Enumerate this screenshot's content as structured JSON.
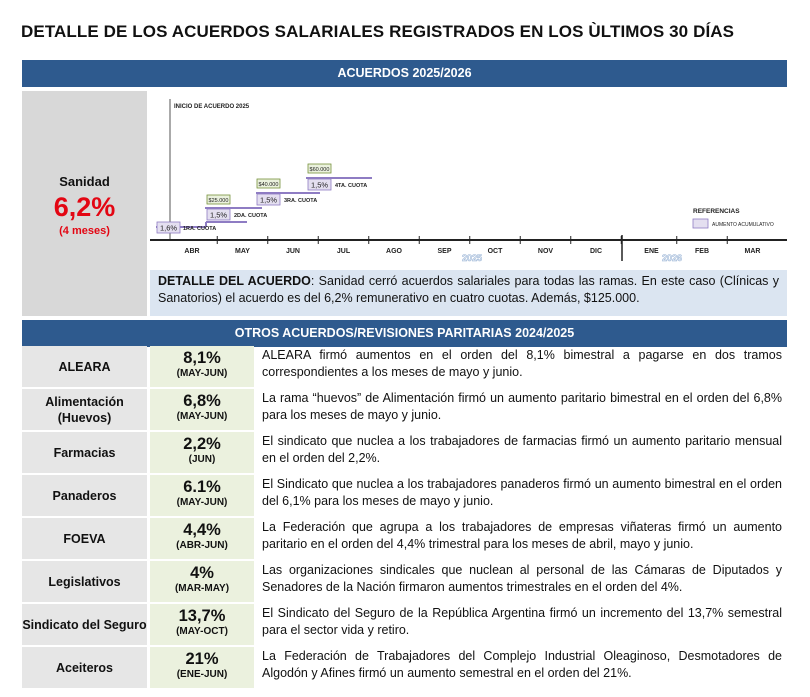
{
  "title": "DETALLE DE LOS ACUERDOS SALARIALES REGISTRADOS EN LOS ÙLTIMOS 30 DÍAS",
  "section1": {
    "header": "ACUERDOS 2025/2026"
  },
  "sanidad": {
    "name": "Sanidad",
    "value": "6,2%",
    "period": "(4 meses)"
  },
  "timeline": {
    "start_label": "INICIO DE ACUERDO 2025",
    "months": [
      "ABR",
      "MAY",
      "JUN",
      "JUL",
      "AGO",
      "SEP",
      "OCT",
      "NOV",
      "DIC",
      "ENE",
      "FEB",
      "MAR"
    ],
    "year_labels": [
      "2025",
      "2026"
    ],
    "steps": [
      {
        "pct": "1,6%",
        "label": "1RA. CUOTA"
      },
      {
        "pct": "1,5%",
        "label": "2DA. CUOTA",
        "bonus": "$25.000"
      },
      {
        "pct": "1,5%",
        "label": "3RA. CUOTA",
        "bonus": "$40.000"
      },
      {
        "pct": "1,5%",
        "label": "4TA. CUOTA",
        "bonus": "$60.000"
      }
    ],
    "legend": {
      "title": "REFERENCIAS",
      "item": "AUMENTO ACUMULATIVO"
    },
    "colors": {
      "step_line": "#8e7cc3",
      "pct_box": "#e4dff0",
      "bonus_box": "#eaf1dd",
      "bonus_border": "#76923c"
    }
  },
  "detail": {
    "label": "DETALLE DEL ACUERDO",
    "text": ": Sanidad cerró acuerdos salariales para todas las ramas. En este caso (Clínicas y Sanatorios) el acuerdo es del 6,2% remunerativo en cuatro cuotas. Además, $125.000."
  },
  "section2": {
    "header": "OTROS ACUERDOS/REVISIONES PARITARIAS 2024/2025"
  },
  "rows": [
    {
      "name": "ALEARA",
      "pct": "8,1%",
      "period": "(MAY-JUN)",
      "desc": "ALEARA firmó aumentos en el orden del 8,1% bimestral a pagarse en dos tramos correspondientes a los meses de mayo y junio."
    },
    {
      "name": "Alimentación (Huevos)",
      "pct": "6,8%",
      "period": "(MAY-JUN)",
      "desc": "La rama “huevos” de Alimentación firmó un aumento paritario bimestral en el orden del 6,8% para los meses de mayo y junio."
    },
    {
      "name": "Farmacias",
      "pct": "2,2%",
      "period": "(JUN)",
      "desc": "El sindicato que nuclea a los trabajadores de farmacias firmó un aumento paritario mensual en el orden del 2,2%."
    },
    {
      "name": "Panaderos",
      "pct": "6.1%",
      "period": "(MAY-JUN)",
      "desc": "El Sindicato que nuclea a los trabajadores panaderos firmó un aumento bimestral en el orden del 6,1% para los meses de mayo y junio."
    },
    {
      "name": "FOEVA",
      "pct": "4,4%",
      "period": "(ABR-JUN)",
      "desc": "La Federación que agrupa a los trabajadores de empresas viñateras firmó un aumento paritario en el orden del 4,4% trimestral para los meses de abril, mayo y junio."
    },
    {
      "name": "Legislativos",
      "pct": "4%",
      "period": "(MAR-MAY)",
      "desc": "Las organizaciones sindicales que nuclean al personal de las Cámaras de Diputados y Senadores de la Nación firmaron aumentos trimestrales en el orden del 4%."
    },
    {
      "name": "Sindicato del Seguro",
      "pct": "13,7%",
      "period": "(MAY-OCT)",
      "desc": "El Sindicato del Seguro de la República Argentina firmó un incremento del 13,7% semestral para el sector vida y retiro."
    },
    {
      "name": "Aceiteros",
      "pct": "21%",
      "period": "(ENE-JUN)",
      "desc": "La Federación de Trabajadores del Complejo Industrial Oleaginoso, Desmotadores de Algodón y Afines firmó un aumento semestral en el orden del 21%."
    }
  ]
}
